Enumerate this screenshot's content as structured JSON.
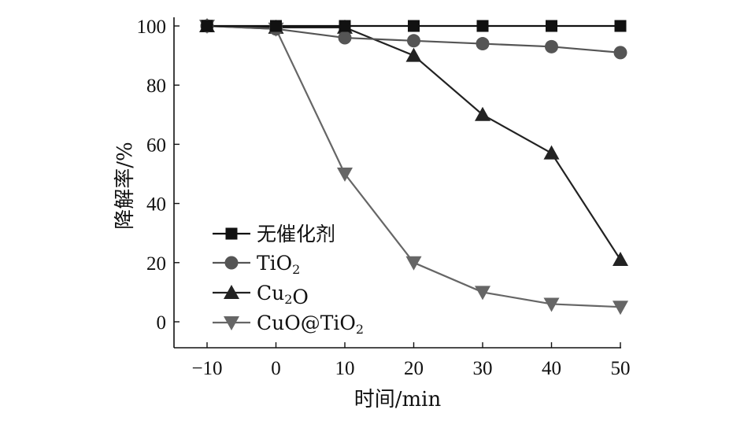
{
  "chart_data": {
    "type": "line",
    "title": "",
    "xlabel": "时间/min",
    "ylabel": "降解率/%",
    "xlim": [
      -15,
      50
    ],
    "ylim": [
      -8,
      103
    ],
    "x_ticks": [
      -10,
      0,
      10,
      20,
      30,
      40,
      50
    ],
    "x_tick_labels": [
      "−10",
      "0",
      "10",
      "20",
      "30",
      "40",
      "50"
    ],
    "y_ticks": [
      0,
      20,
      40,
      60,
      80,
      100
    ],
    "y_tick_labels": [
      "0",
      "20",
      "40",
      "60",
      "80",
      "100"
    ],
    "x": [
      -10,
      0,
      10,
      20,
      30,
      40,
      50
    ],
    "grid": false,
    "legend": "bottom-left",
    "series": [
      {
        "name": "无催化剂",
        "legend_parts": [
          {
            "t": "无催化剂",
            "sub": false
          }
        ],
        "marker": "square",
        "color": "#111111",
        "values": [
          100,
          100,
          100,
          100,
          100,
          100,
          100
        ]
      },
      {
        "name": "TiO2",
        "legend_parts": [
          {
            "t": "TiO",
            "sub": false
          },
          {
            "t": "2",
            "sub": true
          }
        ],
        "marker": "circle",
        "color": "#555555",
        "values": [
          100,
          99,
          96,
          95,
          94,
          93,
          91
        ]
      },
      {
        "name": "Cu2O",
        "legend_parts": [
          {
            "t": "Cu",
            "sub": false
          },
          {
            "t": "2",
            "sub": true
          },
          {
            "t": "O",
            "sub": false
          }
        ],
        "marker": "triangle-up",
        "color": "#222222",
        "values": [
          100,
          99.5,
          99.5,
          90,
          70,
          57,
          21
        ]
      },
      {
        "name": "CuO@TiO2",
        "legend_parts": [
          {
            "t": "CuO@TiO",
            "sub": false
          },
          {
            "t": "2",
            "sub": true
          }
        ],
        "marker": "triangle-down",
        "color": "#666666",
        "values": [
          100,
          99,
          50,
          20,
          10,
          6,
          5
        ]
      }
    ]
  }
}
